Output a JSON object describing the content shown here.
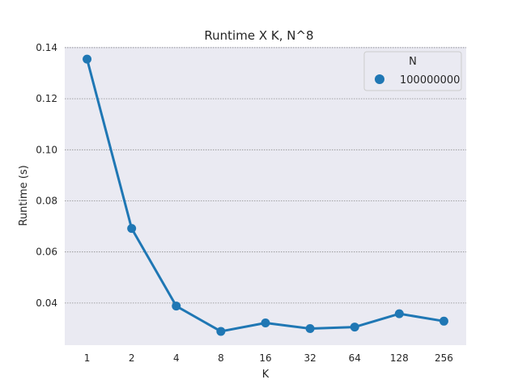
{
  "chart_data": {
    "type": "line",
    "title": "Runtime X K, N^8",
    "xlabel": "K",
    "ylabel": "Runtime (s)",
    "categories": [
      "1",
      "2",
      "4",
      "8",
      "16",
      "32",
      "64",
      "128",
      "256"
    ],
    "series": [
      {
        "name": "100000000",
        "values": [
          0.1355,
          0.0692,
          0.0388,
          0.0289,
          0.0322,
          0.03,
          0.0306,
          0.0358,
          0.0329
        ],
        "color": "#1f77b4"
      }
    ],
    "ylim": [
      0.0235,
      0.1403
    ],
    "yticks": [
      "0.04",
      "0.06",
      "0.08",
      "0.10",
      "0.12",
      "0.14"
    ],
    "legend": {
      "title": "N",
      "placement": "top-right"
    },
    "grid": "horizontal-dotted",
    "background": "#eaeaf2"
  }
}
